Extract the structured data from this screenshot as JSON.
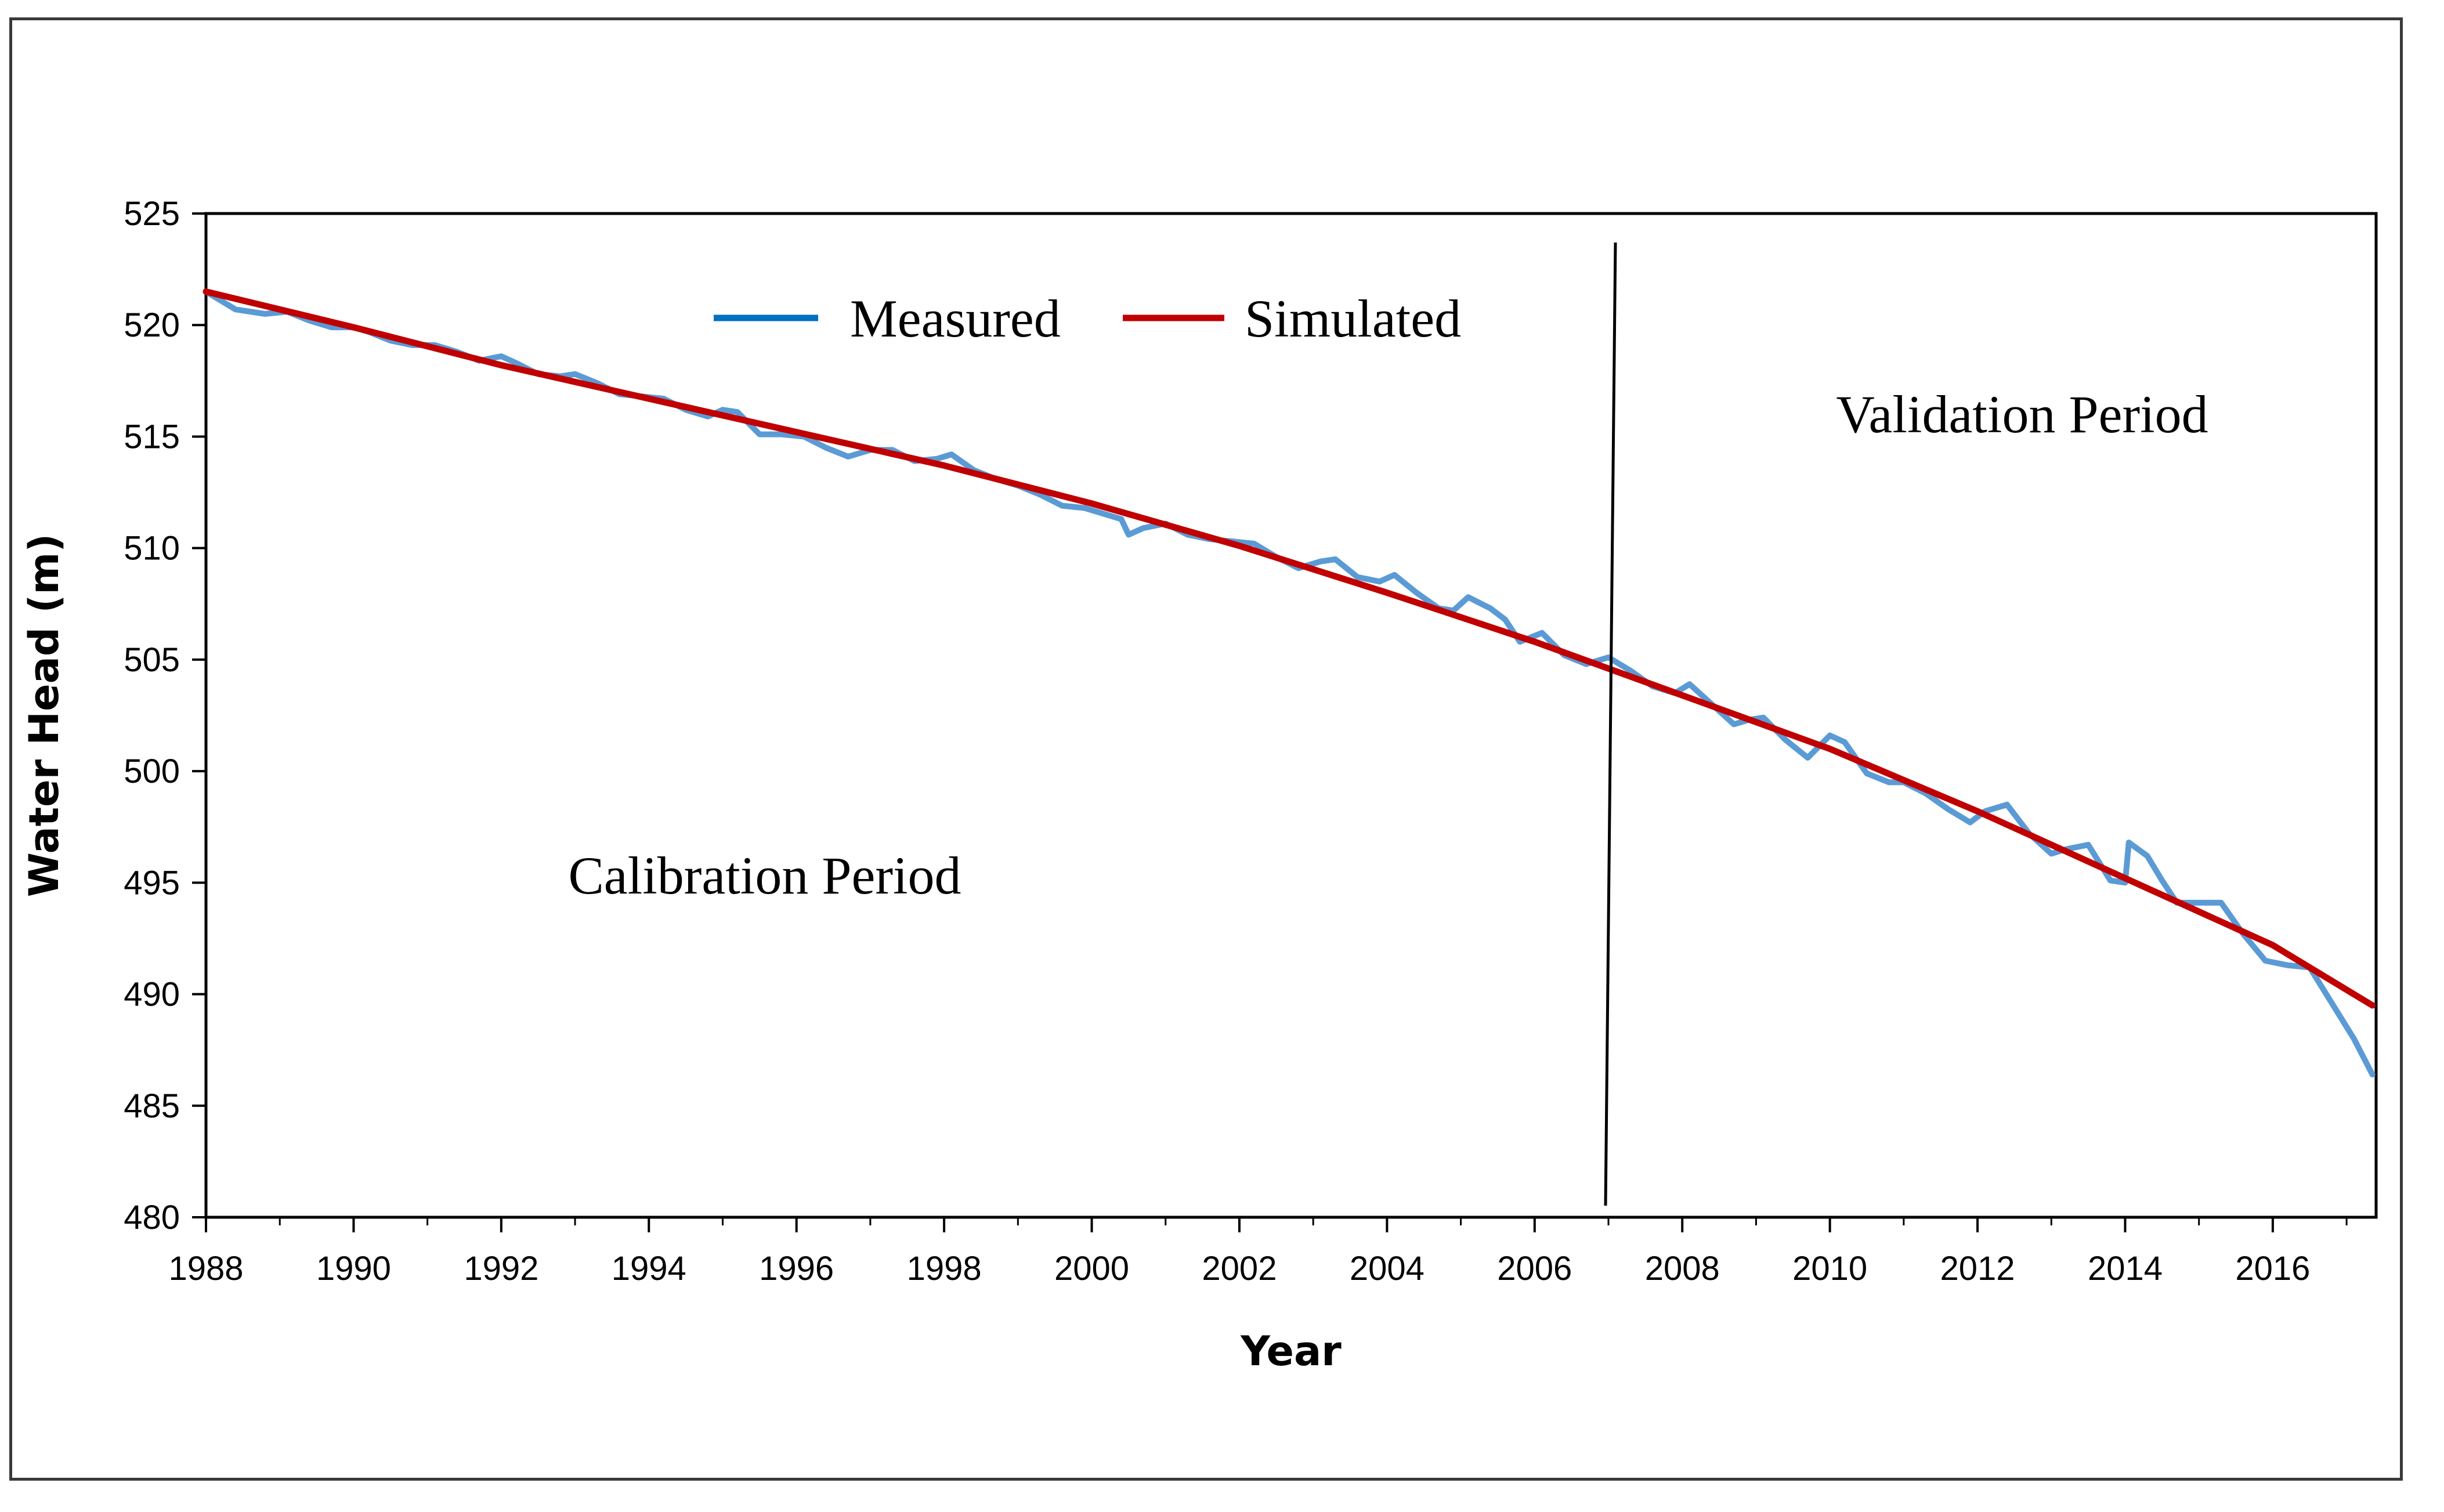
{
  "chart_data": {
    "type": "line",
    "xlabel": "Year",
    "ylabel": "Water Head (m)",
    "xlim": [
      1988,
      2017.4
    ],
    "ylim": [
      480,
      525
    ],
    "x_ticks": [
      "1988",
      "1990",
      "1992",
      "1994",
      "1996",
      "1998",
      "2000",
      "2002",
      "2004",
      "2006",
      "2008",
      "2010",
      "2012",
      "2014",
      "2016"
    ],
    "y_ticks": [
      "480",
      "485",
      "490",
      "495",
      "500",
      "505",
      "510",
      "515",
      "520",
      "525"
    ],
    "grid": false,
    "legend_position": "top-center",
    "divider_year": 2007,
    "annotations": {
      "calibration": "Calibration Period",
      "validation": "Validation Period"
    },
    "series": [
      {
        "name": "Measured",
        "color": "#5b9bd5",
        "legend_color": "#0070c0",
        "x": [
          1988.0,
          1988.4,
          1988.8,
          1989.1,
          1989.4,
          1989.7,
          1990.0,
          1990.2,
          1990.5,
          1990.8,
          1991.1,
          1991.4,
          1991.7,
          1992.0,
          1992.2,
          1992.5,
          1992.8,
          1993.0,
          1993.3,
          1993.6,
          1993.9,
          1994.2,
          1994.5,
          1994.8,
          1995.0,
          1995.2,
          1995.5,
          1995.8,
          1996.1,
          1996.4,
          1996.7,
          1997.0,
          1997.3,
          1997.6,
          1997.9,
          1998.1,
          1998.4,
          1998.7,
          1999.0,
          1999.3,
          1999.6,
          1999.9,
          2000.1,
          2000.4,
          2000.5,
          2000.7,
          2001.0,
          2001.3,
          2001.6,
          2001.9,
          2002.2,
          2002.5,
          2002.8,
          2003.1,
          2003.3,
          2003.6,
          2003.9,
          2004.1,
          2004.4,
          2004.7,
          2004.9,
          2005.1,
          2005.4,
          2005.6,
          2005.8,
          2006.1,
          2006.4,
          2006.7,
          2007.0,
          2007.3,
          2007.6,
          2007.9,
          2008.1,
          2008.4,
          2008.7,
          2008.9,
          2009.1,
          2009.4,
          2009.7,
          2010.0,
          2010.2,
          2010.5,
          2010.8,
          2011.0,
          2011.3,
          2011.6,
          2011.9,
          2012.1,
          2012.4,
          2012.7,
          2013.0,
          2013.2,
          2013.5,
          2013.8,
          2014.0,
          2014.05,
          2014.3,
          2014.5,
          2014.7,
          2014.9,
          2015.1,
          2015.3,
          2015.6,
          2015.9,
          2016.2,
          2016.5,
          2016.8,
          2017.1,
          2017.35
        ],
        "values": [
          521.5,
          520.7,
          520.5,
          520.6,
          520.2,
          519.9,
          519.9,
          519.7,
          519.3,
          519.1,
          519.1,
          518.8,
          518.4,
          518.6,
          518.3,
          517.8,
          517.7,
          517.8,
          517.4,
          516.9,
          516.8,
          516.7,
          516.2,
          515.9,
          516.2,
          516.1,
          515.1,
          515.1,
          515.0,
          514.5,
          514.1,
          514.4,
          514.4,
          513.9,
          514.0,
          514.2,
          513.5,
          513.1,
          512.8,
          512.4,
          511.9,
          511.8,
          511.6,
          511.3,
          510.6,
          510.9,
          511.1,
          510.6,
          510.4,
          510.3,
          510.2,
          509.6,
          509.1,
          509.4,
          509.5,
          508.7,
          508.5,
          508.8,
          508.0,
          507.3,
          507.2,
          507.8,
          507.3,
          506.8,
          505.8,
          506.2,
          505.2,
          504.8,
          505.1,
          504.5,
          503.8,
          503.5,
          503.9,
          503.0,
          502.1,
          502.3,
          502.4,
          501.4,
          500.6,
          501.6,
          501.3,
          499.9,
          499.5,
          499.5,
          499.0,
          498.3,
          497.7,
          498.2,
          498.5,
          497.2,
          496.3,
          496.5,
          496.7,
          495.1,
          495.0,
          496.8,
          496.2,
          495.1,
          494.1,
          494.1,
          494.1,
          494.1,
          492.7,
          491.5,
          491.3,
          491.2,
          489.6,
          488.0,
          486.4
        ]
      },
      {
        "name": "Simulated",
        "color": "#c00000",
        "x": [
          1988,
          1990,
          1992,
          1994,
          1996,
          1998,
          2000,
          2002,
          2004,
          2006,
          2008,
          2010,
          2012,
          2014,
          2016,
          2017.35
        ],
        "values": [
          521.5,
          519.9,
          518.2,
          516.7,
          515.2,
          513.7,
          512.0,
          510.1,
          508.0,
          505.8,
          503.4,
          501.0,
          498.2,
          495.2,
          492.2,
          489.5
        ]
      }
    ]
  }
}
